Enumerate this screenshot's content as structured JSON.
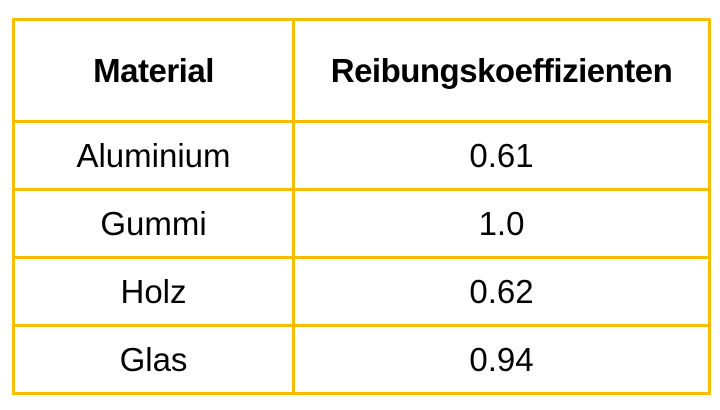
{
  "table": {
    "headers": [
      "Material",
      "Reibungskoeffizienten"
    ],
    "rows": [
      [
        "Aluminium",
        "0.61"
      ],
      [
        "Gummi",
        "1.0"
      ],
      [
        "Holz",
        "0.62"
      ],
      [
        "Glas",
        "0.94"
      ]
    ]
  },
  "colors": {
    "border": "#F5BE00",
    "text": "#000000",
    "background": "#FFFFFF"
  }
}
